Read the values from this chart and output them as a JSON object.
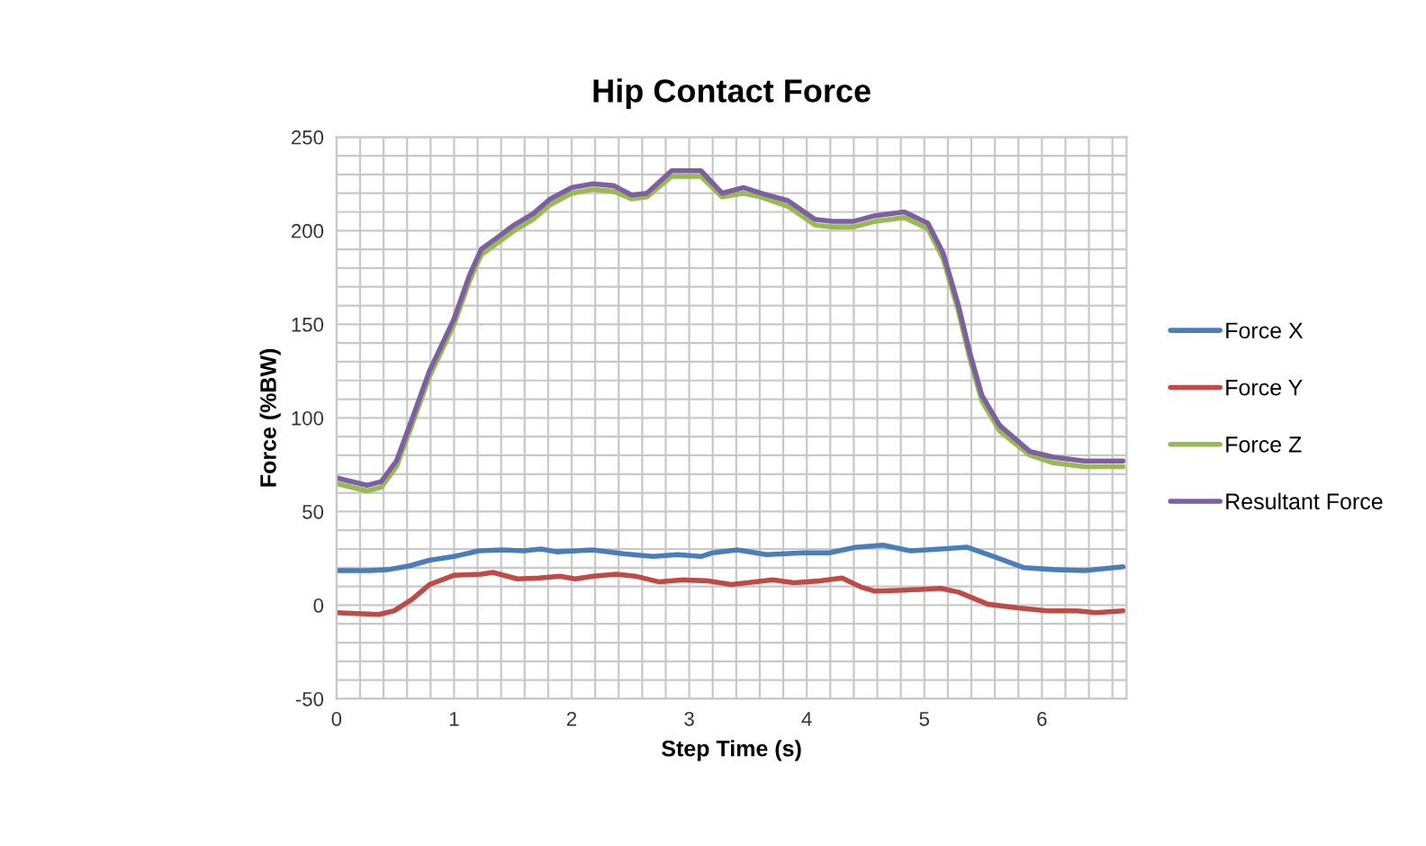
{
  "chart_data": {
    "type": "line",
    "title": "Hip Contact Force",
    "xlabel": "Step Time (s)",
    "ylabel": "Force (%BW)",
    "xlim": [
      0,
      6.72
    ],
    "ylim": [
      -50,
      250
    ],
    "xticks": [
      0,
      {
        "value": 0.2,
        "label": null
      },
      {
        "value": 0.4,
        "label": null
      },
      {
        "value": 0.6,
        "label": null
      },
      {
        "value": 0.8,
        "label": null
      },
      1,
      {
        "value": 1.2,
        "label": null
      },
      {
        "value": 1.4,
        "label": null
      },
      {
        "value": 1.6,
        "label": null
      },
      {
        "value": 1.8,
        "label": null
      },
      2,
      {
        "value": 2.2,
        "label": null
      },
      {
        "value": 2.4,
        "label": null
      },
      {
        "value": 2.6,
        "label": null
      },
      {
        "value": 2.8,
        "label": null
      },
      3,
      {
        "value": 3.2,
        "label": null
      },
      {
        "value": 3.4,
        "label": null
      },
      {
        "value": 3.6,
        "label": null
      },
      {
        "value": 3.8,
        "label": null
      },
      4,
      {
        "value": 4.2,
        "label": null
      },
      {
        "value": 4.4,
        "label": null
      },
      {
        "value": 4.6,
        "label": null
      },
      {
        "value": 4.8,
        "label": null
      },
      5,
      {
        "value": 5.2,
        "label": null
      },
      {
        "value": 5.4,
        "label": null
      },
      {
        "value": 5.6,
        "label": null
      },
      {
        "value": 5.8,
        "label": null
      },
      6,
      {
        "value": 6.2,
        "label": null
      },
      {
        "value": 6.4,
        "label": null
      },
      {
        "value": 6.6,
        "label": null
      }
    ],
    "yticks": [
      -50,
      {
        "value": -40,
        "label": null
      },
      {
        "value": -30,
        "label": null
      },
      {
        "value": -20,
        "label": null
      },
      {
        "value": -10,
        "label": null
      },
      0,
      {
        "value": 10,
        "label": null
      },
      {
        "value": 20,
        "label": null
      },
      {
        "value": 30,
        "label": null
      },
      {
        "value": 40,
        "label": null
      },
      50,
      {
        "value": 60,
        "label": null
      },
      {
        "value": 70,
        "label": null
      },
      {
        "value": 80,
        "label": null
      },
      {
        "value": 90,
        "label": null
      },
      100,
      {
        "value": 110,
        "label": null
      },
      {
        "value": 120,
        "label": null
      },
      {
        "value": 130,
        "label": null
      },
      {
        "value": 140,
        "label": null
      },
      150,
      {
        "value": 160,
        "label": null
      },
      {
        "value": 170,
        "label": null
      },
      {
        "value": 180,
        "label": null
      },
      {
        "value": 190,
        "label": null
      },
      200,
      {
        "value": 210,
        "label": null
      },
      {
        "value": 220,
        "label": null
      },
      {
        "value": 230,
        "label": null
      },
      {
        "value": 240,
        "label": null
      },
      250
    ],
    "grid": true,
    "legend": "right",
    "marker": "none",
    "line_style": "solid",
    "series": [
      {
        "name": "Force X",
        "color": "#4a7ebb",
        "x": [
          0,
          0.28,
          0.44,
          0.62,
          0.79,
          1.0,
          1.21,
          1.41,
          1.59,
          1.74,
          1.87,
          2.18,
          2.44,
          2.69,
          2.9,
          3.1,
          3.2,
          3.41,
          3.66,
          3.97,
          4.19,
          4.42,
          4.65,
          4.88,
          5.14,
          5.36,
          5.59,
          5.85,
          6.1,
          6.36,
          6.69
        ],
        "values": [
          18.5,
          18.5,
          19,
          21,
          24,
          26,
          29,
          29.5,
          29,
          30,
          28.5,
          29.5,
          27.5,
          26,
          27,
          26,
          28,
          29.5,
          27,
          28,
          28,
          31,
          32,
          29,
          30,
          31,
          26,
          20,
          19,
          18.5,
          20.5
        ]
      },
      {
        "name": "Force Y",
        "color": "#be4b48",
        "x": [
          0,
          0.36,
          0.49,
          0.64,
          0.79,
          1.0,
          1.23,
          1.33,
          1.54,
          1.72,
          1.9,
          2.03,
          2.18,
          2.38,
          2.54,
          2.74,
          2.95,
          3.15,
          3.36,
          3.71,
          3.89,
          4.12,
          4.3,
          4.47,
          4.58,
          4.83,
          5.14,
          5.29,
          5.54,
          5.8,
          6.05,
          6.3,
          6.46,
          6.69
        ],
        "values": [
          -4,
          -5,
          -3,
          3,
          11,
          16,
          16.5,
          17.5,
          14,
          14.5,
          15.5,
          14,
          15.5,
          16.5,
          15.5,
          12.5,
          13.5,
          13,
          11,
          13.5,
          12,
          13,
          14.5,
          9.5,
          7.5,
          8,
          9,
          7,
          0.5,
          -1.5,
          -3,
          -3,
          -4,
          -3
        ]
      },
      {
        "name": "Force Z",
        "color": "#98b954",
        "x": [
          0,
          0.26,
          0.38,
          0.51,
          0.64,
          0.79,
          1.0,
          1.13,
          1.23,
          1.36,
          1.51,
          1.67,
          1.82,
          2.0,
          2.18,
          2.36,
          2.51,
          2.64,
          2.85,
          3.05,
          3.1,
          3.28,
          3.46,
          3.61,
          3.84,
          4.07,
          4.22,
          4.4,
          4.58,
          4.83,
          5.03,
          5.16,
          5.29,
          5.39,
          5.49,
          5.64,
          5.9,
          6.1,
          6.36,
          6.69
        ],
        "values": [
          65,
          61,
          63,
          74,
          96,
          122,
          150,
          173,
          187,
          193,
          200,
          206,
          214,
          220,
          222,
          221,
          217,
          218,
          229,
          229,
          229,
          218,
          220,
          218,
          213,
          203,
          202,
          202,
          205,
          207,
          201,
          185,
          157,
          131,
          109,
          93,
          80,
          76,
          74,
          74
        ]
      },
      {
        "name": "Resultant Force",
        "color": "#7d60a0",
        "x": [
          0,
          0.26,
          0.38,
          0.51,
          0.64,
          0.79,
          1.0,
          1.13,
          1.23,
          1.36,
          1.51,
          1.67,
          1.82,
          2.0,
          2.18,
          2.36,
          2.51,
          2.64,
          2.85,
          3.05,
          3.1,
          3.28,
          3.46,
          3.61,
          3.84,
          4.07,
          4.22,
          4.4,
          4.58,
          4.83,
          5.03,
          5.16,
          5.29,
          5.39,
          5.49,
          5.64,
          5.9,
          6.1,
          6.36,
          6.69
        ],
        "values": [
          68,
          64,
          66,
          77,
          99,
          125,
          153,
          176,
          190,
          196,
          203,
          209,
          217,
          223,
          225,
          224,
          219,
          220,
          232,
          232,
          232,
          220,
          223,
          220,
          216,
          206,
          205,
          205,
          208,
          210,
          204,
          188,
          160,
          134,
          112,
          96,
          82,
          79,
          77,
          77
        ]
      }
    ]
  }
}
